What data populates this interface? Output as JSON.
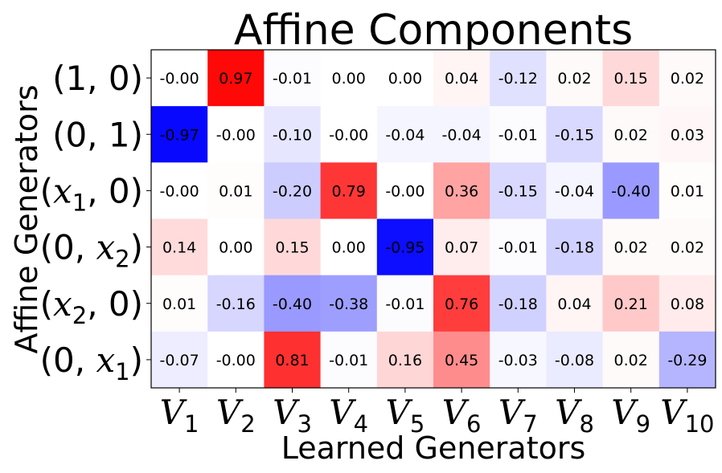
{
  "chart_data": {
    "type": "heatmap",
    "title": "Affine Components",
    "xlabel": "Learned Generators",
    "ylabel": "Affine Generators",
    "x_ticks": [
      {
        "base": "V",
        "sub": "1"
      },
      {
        "base": "V",
        "sub": "2"
      },
      {
        "base": "V",
        "sub": "3"
      },
      {
        "base": "V",
        "sub": "4"
      },
      {
        "base": "V",
        "sub": "5"
      },
      {
        "base": "V",
        "sub": "6"
      },
      {
        "base": "V",
        "sub": "7"
      },
      {
        "base": "V",
        "sub": "8"
      },
      {
        "base": "V",
        "sub": "9"
      },
      {
        "base": "V",
        "sub": "10"
      }
    ],
    "y_ticks": [
      [
        {
          "t": "(1, 0)"
        }
      ],
      [
        {
          "t": "(0, 1)"
        }
      ],
      [
        {
          "t": "("
        },
        {
          "t": "x",
          "i": true
        },
        {
          "t": "1",
          "sub": true
        },
        {
          "t": ", 0)"
        }
      ],
      [
        {
          "t": "(0, "
        },
        {
          "t": "x",
          "i": true
        },
        {
          "t": "2",
          "sub": true
        },
        {
          "t": ")"
        }
      ],
      [
        {
          "t": "("
        },
        {
          "t": "x",
          "i": true
        },
        {
          "t": "2",
          "sub": true
        },
        {
          "t": ", 0)"
        }
      ],
      [
        {
          "t": "(0, "
        },
        {
          "t": "x",
          "i": true
        },
        {
          "t": "1",
          "sub": true
        },
        {
          "t": ")"
        }
      ]
    ],
    "values": [
      [
        -0.0,
        0.97,
        -0.01,
        0.0,
        0.0,
        0.04,
        -0.12,
        0.02,
        0.15,
        0.02
      ],
      [
        -0.97,
        -0.0,
        -0.1,
        -0.0,
        -0.04,
        -0.04,
        -0.01,
        -0.15,
        0.02,
        0.03
      ],
      [
        -0.0,
        0.01,
        -0.2,
        0.79,
        -0.0,
        0.36,
        -0.15,
        -0.04,
        -0.4,
        0.01
      ],
      [
        0.14,
        0.0,
        0.15,
        0.0,
        -0.95,
        0.07,
        -0.01,
        -0.18,
        0.02,
        0.02
      ],
      [
        0.01,
        -0.16,
        -0.4,
        -0.38,
        -0.01,
        0.76,
        -0.18,
        0.04,
        0.21,
        0.08
      ],
      [
        -0.07,
        -0.0,
        0.81,
        -0.01,
        0.16,
        0.45,
        -0.03,
        -0.08,
        0.02,
        -0.29
      ]
    ],
    "labels": [
      [
        "-0.00",
        "0.97",
        "-0.01",
        "0.00",
        "0.00",
        "0.04",
        "-0.12",
        "0.02",
        "0.15",
        "0.02"
      ],
      [
        "-0.97",
        "-0.00",
        "-0.10",
        "-0.00",
        "-0.04",
        "-0.04",
        "-0.01",
        "-0.15",
        "0.02",
        "0.03"
      ],
      [
        "-0.00",
        "0.01",
        "-0.20",
        "0.79",
        "-0.00",
        "0.36",
        "-0.15",
        "-0.04",
        "-0.40",
        "0.01"
      ],
      [
        "0.14",
        "0.00",
        "0.15",
        "0.00",
        "-0.95",
        "0.07",
        "-0.01",
        "-0.18",
        "0.02",
        "0.02"
      ],
      [
        "0.01",
        "-0.16",
        "-0.40",
        "-0.38",
        "-0.01",
        "0.76",
        "-0.18",
        "0.04",
        "0.21",
        "0.08"
      ],
      [
        "-0.07",
        "-0.00",
        "0.81",
        "-0.01",
        "0.16",
        "0.45",
        "-0.03",
        "-0.08",
        "0.02",
        "-0.29"
      ]
    ],
    "colormap": "bwr",
    "vmin": -1,
    "vmax": 1,
    "colors": {
      "negative": "#0000ff",
      "zero": "#ffffff",
      "positive": "#ff0000"
    },
    "grid": false,
    "colorbar": false
  }
}
